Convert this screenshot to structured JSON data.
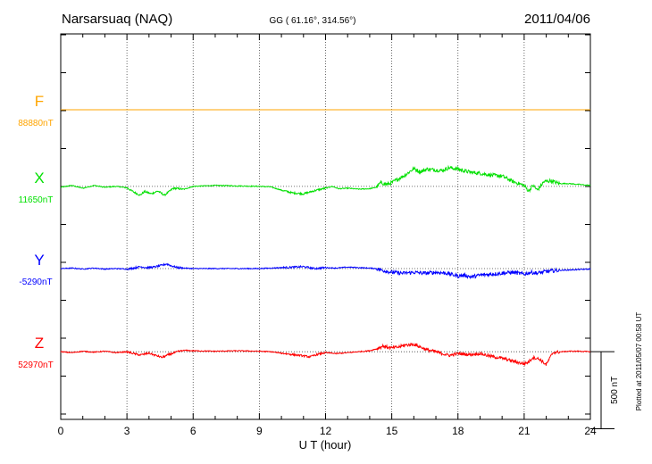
{
  "chart_data": {
    "type": "line",
    "title": "Narsarsuaq (NAQ)",
    "subtitle": "GG ( 61.16°, 314.56°)",
    "date": "2011/04/06",
    "xlabel": "U T (hour)",
    "xlim": [
      0,
      24
    ],
    "xticks": [
      "0",
      "3",
      "6",
      "9",
      "12",
      "15",
      "18",
      "21",
      "24"
    ],
    "grid": true,
    "scale_bar_label": "500 nT",
    "scale_bar_nT": 500,
    "footer": "Plotted at 2011/05/07 00:58 UT",
    "series": [
      {
        "name": "F",
        "baseline_label": "88880nT",
        "color": "#ffa500",
        "baseline_offset_nT": 0,
        "x": [
          0,
          24
        ],
        "y": [
          0,
          0
        ]
      },
      {
        "name": "X",
        "baseline_label": "11650nT",
        "color": "#00e000",
        "baseline_offset_nT": -820,
        "x": [
          0,
          0.5,
          1,
          1.5,
          2,
          2.5,
          3,
          3.3,
          3.6,
          3.8,
          4.1,
          4.4,
          4.7,
          5.1,
          5.6,
          6,
          7,
          8,
          9,
          9.5,
          10,
          10.5,
          11,
          11.3,
          11.6,
          12,
          12.3,
          12.6,
          13,
          13.5,
          14,
          14.3,
          14.5,
          14.8,
          15,
          15.3,
          15.6,
          16,
          16.3,
          16.6,
          17,
          17.3,
          17.6,
          18,
          18.3,
          18.6,
          19,
          19.5,
          20,
          20.5,
          21,
          21.2,
          21.4,
          21.6,
          21.9,
          22.2,
          22.6,
          23,
          23.5,
          24
        ],
        "y": [
          -10,
          10,
          -20,
          10,
          -10,
          0,
          -15,
          -60,
          -95,
          -55,
          -80,
          -50,
          -95,
          -20,
          -30,
          0,
          10,
          5,
          0,
          -5,
          -40,
          -70,
          -80,
          -60,
          -40,
          -20,
          0,
          -25,
          -20,
          -30,
          -25,
          -10,
          40,
          20,
          40,
          80,
          120,
          190,
          155,
          185,
          175,
          170,
          200,
          185,
          165,
          150,
          140,
          120,
          110,
          50,
          10,
          -50,
          10,
          -40,
          50,
          60,
          30,
          30,
          20,
          10
        ]
      },
      {
        "name": "Y",
        "baseline_label": "-5290nT",
        "color": "#0000ff",
        "baseline_offset_nT": -1700,
        "x": [
          0,
          0.5,
          1,
          1.5,
          2,
          2.5,
          3,
          3.3,
          3.6,
          3.9,
          4.2,
          4.5,
          4.8,
          5,
          5.3,
          5.6,
          6,
          7,
          8,
          9,
          9.5,
          10,
          10.5,
          11,
          11.5,
          12,
          12.5,
          13,
          13.5,
          14,
          14.3,
          14.6,
          15,
          15.5,
          16,
          16.5,
          17,
          17.5,
          18,
          18.3,
          18.6,
          19,
          19.5,
          20,
          20.5,
          21,
          21.3,
          21.6,
          22,
          22.5,
          23,
          23.5,
          24
        ],
        "y": [
          0,
          5,
          -5,
          5,
          -5,
          0,
          -5,
          5,
          20,
          10,
          15,
          30,
          50,
          30,
          10,
          5,
          0,
          0,
          0,
          0,
          5,
          10,
          15,
          20,
          0,
          10,
          5,
          15,
          10,
          5,
          0,
          -20,
          -40,
          -50,
          -40,
          -50,
          -40,
          -50,
          -80,
          -70,
          -90,
          -70,
          -60,
          -50,
          -40,
          -60,
          -40,
          -50,
          -30,
          -20,
          -15,
          -10,
          -5
        ]
      },
      {
        "name": "Z",
        "baseline_label": "52970nT",
        "color": "#ff0000",
        "baseline_offset_nT": -2590,
        "x": [
          0,
          0.5,
          1,
          1.5,
          2,
          2.5,
          3,
          3.3,
          3.6,
          4,
          4.3,
          4.6,
          4.9,
          5.3,
          5.6,
          6,
          7,
          8,
          9,
          9.5,
          10,
          10.5,
          11,
          11.3,
          11.6,
          12,
          12.5,
          13,
          13.5,
          14,
          14.3,
          14.6,
          15,
          15.3,
          15.6,
          16,
          16.3,
          16.6,
          17,
          17.3,
          17.6,
          18,
          18.5,
          19,
          19.5,
          20,
          20.5,
          20.8,
          21,
          21.2,
          21.4,
          21.7,
          22,
          22.3,
          22.7,
          23,
          23.5,
          24
        ],
        "y": [
          0,
          -10,
          5,
          -5,
          5,
          -10,
          0,
          -20,
          -35,
          -15,
          -40,
          -60,
          -30,
          0,
          15,
          10,
          5,
          10,
          5,
          0,
          -15,
          -30,
          -45,
          -55,
          -30,
          -10,
          -20,
          -10,
          0,
          10,
          30,
          60,
          40,
          50,
          70,
          80,
          50,
          20,
          0,
          -20,
          -40,
          -20,
          -30,
          -20,
          -50,
          -70,
          -100,
          -120,
          -130,
          -110,
          -60,
          -80,
          -140,
          -10,
          0,
          5,
          5,
          0
        ]
      }
    ]
  }
}
